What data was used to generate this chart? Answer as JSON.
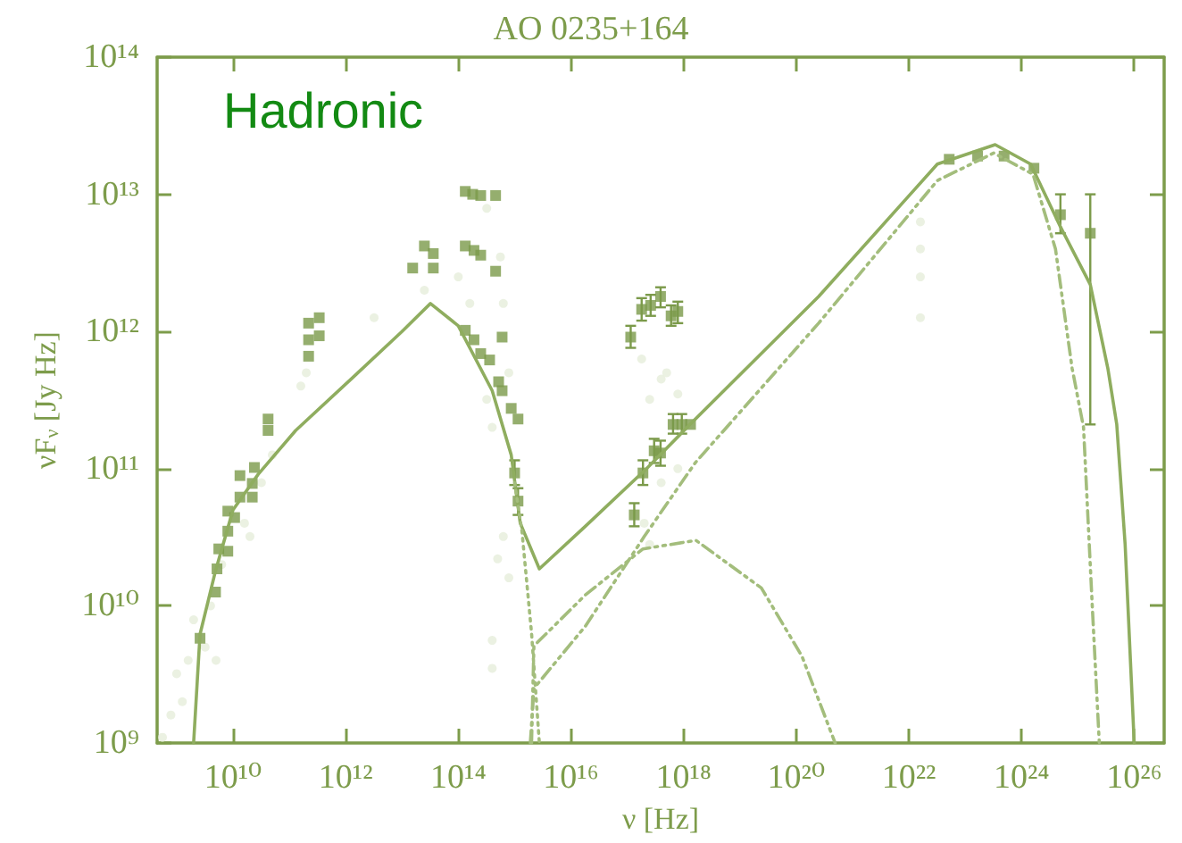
{
  "chart_data": {
    "type": "scatter",
    "title": "AO 0235+164",
    "xlabel": "ν [Hz]",
    "ylabel": "νF$_{ν}$ [Jy Hz]",
    "annotations": [
      "Hadronic"
    ],
    "log": "xy",
    "grid": false,
    "xlim": [
      450000000.0,
      3.4e+26
    ],
    "ylim": [
      1000000000.0,
      100000000000000.0
    ],
    "xticks": [
      {
        "value": 10000000000.0,
        "label": "10¹⁰"
      },
      {
        "value": 1000000000000.0,
        "label": "10¹²"
      },
      {
        "value": 100000000000000.0,
        "label": "10¹⁴"
      },
      {
        "value": 1e+16,
        "label": "10¹⁶"
      },
      {
        "value": 1e+18,
        "label": "10¹⁸"
      },
      {
        "value": 1e+20,
        "label": "10²⁰"
      },
      {
        "value": 1e+22,
        "label": "10²²"
      },
      {
        "value": 1e+24,
        "label": "10²⁴"
      },
      {
        "value": 1e+26,
        "label": "10²⁶"
      }
    ],
    "yticks": [
      {
        "value": 1000000000.0,
        "label": "10⁹"
      },
      {
        "value": 10000000000.0,
        "label": "10¹⁰"
      },
      {
        "value": 100000000000.0,
        "label": "10¹¹"
      },
      {
        "value": 1000000000000.0,
        "label": "10¹²"
      },
      {
        "value": 10000000000000.0,
        "label": "10¹³"
      },
      {
        "value": 100000000000000.0,
        "label": "10¹⁴"
      }
    ],
    "series": [
      {
        "marker": "circle",
        "color": "#e6eedb",
        "x": [
          560000000.0,
          790000000.0,
          1000000000.0,
          1260000000.0,
          1600000000.0,
          2000000000.0,
          3200000000.0,
          4000000000.0,
          5000000000.0,
          6300000000.0,
          10000000000.0,
          16000000000.0,
          20000000000.0,
          32000000000.0,
          50000000000.0,
          160000000000.0,
          200000000000.0,
          3200000000000.0,
          25000000000000.0,
          100000000000000.0,
          160000000000000.0,
          200000000000000.0,
          320000000000000.0,
          400000000000000.0,
          630000000000000.0,
          790000000000000.0,
          560000000000000.0,
          320000000000000.0,
          630000000000000.0,
          790000000000000.0,
          400000000000000.0,
          400000000000000.0,
          500000000000000.0,
          1.8e+17,
          2.5e+17,
          4e+17,
          5e+17,
          7.9e+17,
          2e+17,
          2.5e+17,
          4e+17,
          7.9e+17,
          1.6e+22,
          1.6e+22,
          1.6e+22,
          1.6e+22
        ],
        "values": [
          1100000000.0,
          1600000000.0,
          3200000000.0,
          2000000000.0,
          4000000000.0,
          7900000000.0,
          5000000000.0,
          10000000000.0,
          4000000000.0,
          20000000000.0,
          null,
          40000000000.0,
          32000000000.0,
          79000000000.0,
          126000000000.0,
          400000000000.0,
          500000000000.0,
          1260000000000.0,
          2000000000000.0,
          2500000000000.0,
          1600000000000.0,
          null,
          320000000000.0,
          200000000000.0,
          1600000000000.0,
          500000000000.0,
          3500000000000.0,
          7900000000000.0,
          32000000000.0,
          16000000000.0,
          5600000000.0,
          3500000000.0,
          22000000000.0,
          630000000000.0,
          320000000000.0,
          450000000000.0,
          500000000000.0,
          350000000000.0,
          40000000000.0,
          28000000000.0,
          79000000000.0,
          100000000000.0,
          6300000000000.0,
          4000000000000.0,
          2500000000000.0,
          1260000000000.0
        ]
      },
      {
        "marker": "square",
        "color": "#7b9a4a",
        "x": [
          2600000000.0,
          4900000000.0,
          5200000000.0,
          5600000000.0,
          8100000000.0,
          8100000000.0,
          8100000000.0,
          10700000000.0,
          13300000000.0,
          13300000000.0,
          22000000000.0,
          24000000000.0,
          22000000000.0,
          42000000000.0,
          42000000000.0,
          220000000000.0,
          340000000000.0,
          220000000000.0,
          340000000000.0,
          220000000000.0,
          25000000000000.0,
          36000000000000.0,
          15500000000000.0,
          36000000000000.0,
          133000000000000.0,
          180000000000000.0,
          250000000000000.0,
          460000000000000.0,
          133000000000000.0,
          190000000000000.0,
          250000000000000.0,
          460000000000000.0,
          133000000000000.0,
          190000000000000.0,
          250000000000000.0,
          600000000000000.0,
          360000000000000.0,
          520000000000000.0,
          600000000000000.0,
          870000000000000.0,
          1150000000000000.0,
          1.33e+18,
          5.2e+22,
          1.66e+23,
          4.9e+23,
          1.66e+24
        ],
        "values": [
          5800000000.0,
          12600000000.0,
          18600000000.0,
          26000000000.0,
          25000000000.0,
          35000000000.0,
          49000000000.0,
          44000000000.0,
          62000000000.0,
          89000000000.0,
          62000000000.0,
          102000000000.0,
          78000000000.0,
          230000000000.0,
          190000000000.0,
          1150000000000.0,
          1260000000000.0,
          870000000000.0,
          930000000000.0,
          660000000000.0,
          4200000000000.0,
          3700000000000.0,
          2900000000000.0,
          2900000000000.0,
          10500000000000.0,
          10000000000000.0,
          9800000000000.0,
          9800000000000.0,
          4200000000000.0,
          3900000000000.0,
          3600000000000.0,
          2750000000000.0,
          1020000000000.0,
          870000000000.0,
          690000000000.0,
          910000000000.0,
          620000000000.0,
          430000000000.0,
          370000000000.0,
          275000000000.0,
          230000000000.0,
          210000000000.0,
          18000000000000.0,
          19000000000000.0,
          19000000000000.0,
          15500000000000.0
        ]
      },
      {
        "marker": "square",
        "color": "#7b9a4a",
        "x": [
          1000000000000000.0,
          1150000000000000.0,
          1.15e+17,
          1.8e+17,
          2.6e+17,
          3.9e+17,
          6e+17,
          7.9e+17,
          1.33e+17,
          1.9e+17,
          3e+17,
          3.9e+17,
          6.5e+17,
          9.3e+17,
          4.9e+24,
          1.66e+25
        ],
        "values": [
          93000000000.0,
          58000000000.0,
          910000000000.0,
          1450000000000.0,
          1550000000000.0,
          1800000000000.0,
          1300000000000.0,
          1400000000000.0,
          46000000000.0,
          93000000000.0,
          135000000000.0,
          130000000000.0,
          210000000000.0,
          210000000000.0,
          7100000000000.0,
          5200000000000.0
        ],
        "errors": [
          [
            76000000000.0,
            115000000000.0
          ],
          [
            46000000000.0,
            72000000000.0
          ],
          [
            760000000000.0,
            1100000000000.0
          ],
          [
            1200000000000.0,
            1750000000000.0
          ],
          [
            1300000000000.0,
            1850000000000.0
          ],
          [
            1500000000000.0,
            2100000000000.0
          ],
          [
            1100000000000.0,
            1550000000000.0
          ],
          [
            1150000000000.0,
            1650000000000.0
          ],
          [
            38000000000.0,
            56000000000.0
          ],
          [
            76000000000.0,
            115000000000.0
          ],
          [
            110000000000.0,
            165000000000.0
          ],
          [
            105000000000.0,
            160000000000.0
          ],
          [
            180000000000.0,
            250000000000.0
          ],
          [
            180000000000.0,
            250000000000.0
          ],
          [
            5200000000000.0,
            10000000000000.0
          ],
          [
            210000000000.0,
            10000000000000.0
          ]
        ]
      },
      {
        "type": "line",
        "marker": "none",
        "line_style": "solid",
        "color": "#8fad5f",
        "x": [
          2000000000.0,
          2600000000.0,
          4900000000.0,
          10000000000.0,
          28000000000.0,
          130000000000.0,
          1400000000000.0,
          10000000000000.0,
          32000000000000.0,
          100000000000000.0,
          400000000000000.0,
          870000000000000.0,
          1260000000000000.0,
          2750000000000000.0,
          1.8e+16,
          2.2e+17,
          1.3e+18,
          2.5e+20,
          3.2e+22,
          3.4e+23,
          1.45e+24,
          4.9e+24,
          1.66e+25,
          3.4e+25,
          4.9e+25,
          6.9e+25,
          1e+26
        ],
        "values": [
          1000000000.0,
          6200000000.0,
          18000000000.0,
          50000000000.0,
          91000000000.0,
          190000000000.0,
          470000000000.0,
          1000000000000.0,
          1600000000000.0,
          1100000000000.0,
          370000000000.0,
          126000000000.0,
          40000000000.0,
          18600000000.0,
          38000000000.0,
          100000000000.0,
          210000000000.0,
          1800000000000.0,
          16600000000000.0,
          23000000000000.0,
          16600000000000.0,
          5800000000000.0,
          2200000000000.0,
          540000000000.0,
          210000000000.0,
          28000000000.0,
          1000000000.0
        ]
      },
      {
        "type": "line",
        "marker": "none",
        "line_style": "dashed",
        "color": "#a3bd7c",
        "x": [
          1900000000000000.0,
          2200000000000000.0,
          1.8e+16,
          2e+17,
          1.6e+18,
          2.5e+20,
          3.2e+22,
          3.2e+23,
          1.6e+24,
          4e+24,
          7.9e+24,
          1.26e+25,
          1.8e+25,
          2.4e+25
        ],
        "values": [
          1000000000.0,
          2500000000.0,
          7100000000.0,
          32000000000.0,
          110000000000.0,
          1150000000000.0,
          12600000000000.0,
          20000000000000.0,
          14000000000000.0,
          4000000000000.0,
          540000000000.0,
          200000000000.0,
          10000000000.0,
          1000000000.0
        ]
      },
      {
        "type": "line",
        "marker": "none",
        "line_style": "dashed",
        "color": "#a3bd7c",
        "x": [
          2000000000000000.0,
          2200000000000000.0,
          1.8e+16,
          1.9e+17,
          1.66e+18,
          2.4e+19,
          1.26e+20,
          4.9e+20
        ],
        "values": [
          1000000000.0,
          5100000000.0,
          12000000000.0,
          26000000000.0,
          30000000000.0,
          13500000000.0,
          4300000000.0,
          1000000000.0
        ]
      },
      {
        "type": "line",
        "marker": "none",
        "line_style": "dotted",
        "color": "#a3bd7c",
        "x": [
          1000000000000000.0,
          1350000000000000.0,
          2000000000000000.0,
          2750000000000000.0
        ],
        "values": [
          79000000000.0,
          35000000000.0,
          6300000000.0,
          1000000000.0
        ]
      }
    ]
  }
}
